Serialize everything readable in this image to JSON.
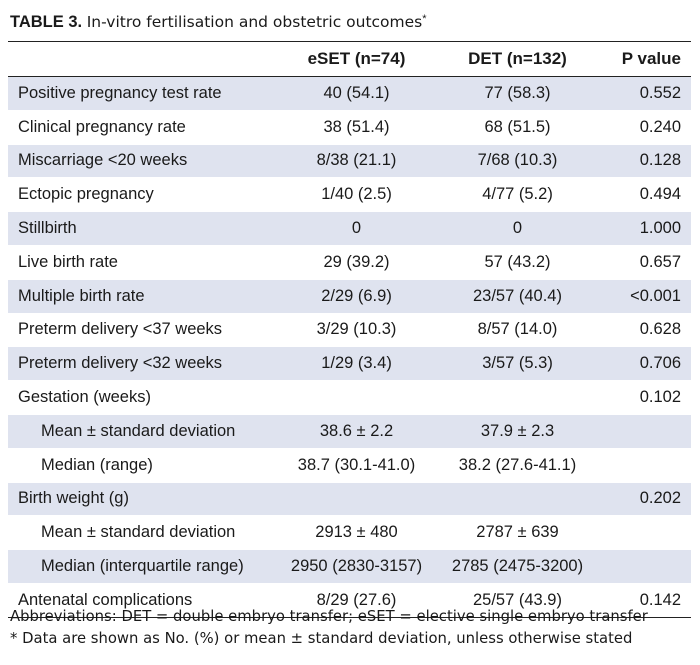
{
  "title": {
    "label": "TABLE 3.",
    "caption": "In-vitro fertilisation and obstetric outcomes",
    "marker": "*"
  },
  "columns": [
    "",
    "eSET (n=74)",
    "DET (n=132)",
    "P value"
  ],
  "rows": [
    {
      "label": "Positive pregnancy test rate",
      "eset": "40 (54.1)",
      "det": "77 (58.3)",
      "p": "0.552",
      "indent": false
    },
    {
      "label": "Clinical pregnancy rate",
      "eset": "38 (51.4)",
      "det": "68 (51.5)",
      "p": "0.240",
      "indent": false
    },
    {
      "label": "Miscarriage <20 weeks",
      "eset": "8/38 (21.1)",
      "det": "7/68 (10.3)",
      "p": "0.128",
      "indent": false
    },
    {
      "label": "Ectopic pregnancy",
      "eset": "1/40 (2.5)",
      "det": "4/77 (5.2)",
      "p": "0.494",
      "indent": false
    },
    {
      "label": "Stillbirth",
      "eset": "0",
      "det": "0",
      "p": "1.000",
      "indent": false
    },
    {
      "label": "Live birth rate",
      "eset": "29 (39.2)",
      "det": "57 (43.2)",
      "p": "0.657",
      "indent": false
    },
    {
      "label": "Multiple birth rate",
      "eset": "2/29 (6.9)",
      "det": "23/57 (40.4)",
      "p": "<0.001",
      "indent": false
    },
    {
      "label": "Preterm delivery <37 weeks",
      "eset": "3/29 (10.3)",
      "det": "8/57 (14.0)",
      "p": "0.628",
      "indent": false
    },
    {
      "label": "Preterm delivery <32 weeks",
      "eset": "1/29 (3.4)",
      "det": "3/57 (5.3)",
      "p": "0.706",
      "indent": false
    },
    {
      "label": "Gestation (weeks)",
      "eset": "",
      "det": "",
      "p": "0.102",
      "indent": false
    },
    {
      "label": "Mean ± standard deviation",
      "eset": "38.6 ± 2.2",
      "det": "37.9 ± 2.3",
      "p": "",
      "indent": true
    },
    {
      "label": "Median (range)",
      "eset": "38.7 (30.1-41.0)",
      "det": "38.2 (27.6-41.1)",
      "p": "",
      "indent": true
    },
    {
      "label": "Birth weight (g)",
      "eset": "",
      "det": "",
      "p": "0.202",
      "indent": false
    },
    {
      "label": "Mean ± standard deviation",
      "eset": "2913 ± 480",
      "det": "2787 ± 639",
      "p": "",
      "indent": true
    },
    {
      "label": "Median (interquartile range)",
      "eset": "2950 (2830-3157)",
      "det": "2785 (2475-3200)",
      "p": "",
      "indent": true
    },
    {
      "label": "Antenatal complications",
      "eset": "8/29 (27.6)",
      "det": "25/57 (43.9)",
      "p": "0.142",
      "indent": false
    }
  ],
  "footnotes": [
    "Abbreviations: DET = double embryo transfer; eSET = elective single embryo transfer",
    "*   Data are shown as No. (%) or mean ± standard deviation, unless otherwise stated"
  ],
  "colors": {
    "row_shade": "#dfe3ef",
    "rule": "#222222",
    "text": "#1a1a1a"
  }
}
